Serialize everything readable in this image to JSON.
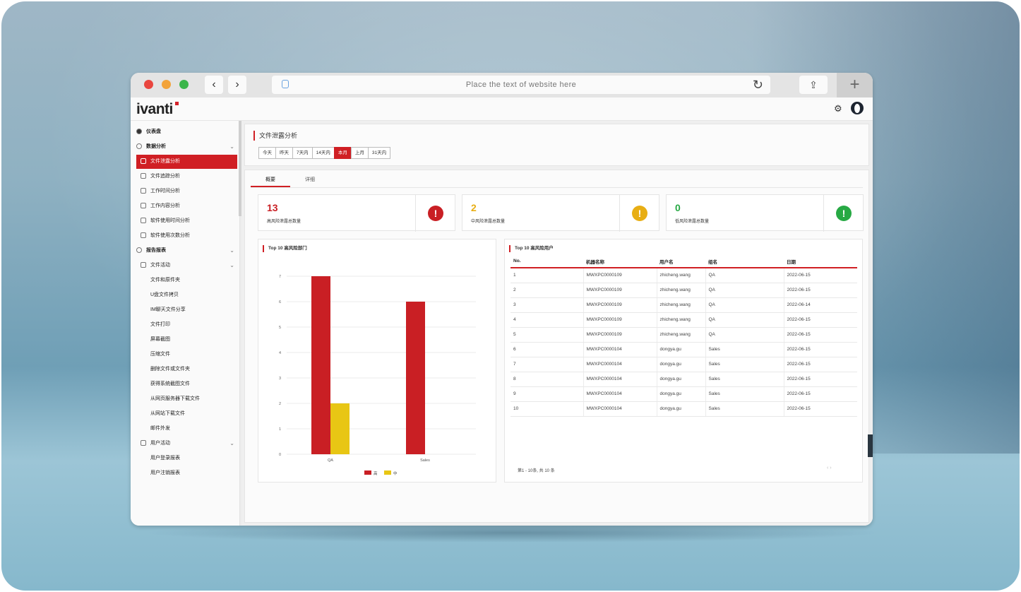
{
  "browser": {
    "url_placeholder": "Place the text of website here",
    "back_icon": "‹",
    "forward_icon": "›",
    "reload_icon": "↻",
    "share_icon": "⇪",
    "new_tab_icon": "+"
  },
  "app": {
    "logo": "ivanti",
    "settings_icon": "⚙"
  },
  "sidebar": {
    "items": [
      {
        "label": "仪表盘",
        "level": 0,
        "icon": "dashboard-icon"
      },
      {
        "label": "数据分析",
        "level": 0,
        "icon": "analytics-icon",
        "expandable": true
      },
      {
        "label": "文件泄露分析",
        "level": 1,
        "icon": "file-icon",
        "active": true
      },
      {
        "label": "文件追踪分析",
        "level": 1,
        "icon": "table-icon"
      },
      {
        "label": "工作时间分析",
        "level": 1,
        "icon": "calendar-icon"
      },
      {
        "label": "工作内容分析",
        "level": 1,
        "icon": "calendar-icon"
      },
      {
        "label": "软件使用时间分析",
        "level": 1,
        "icon": "clock-icon"
      },
      {
        "label": "软件使用次数分析",
        "level": 1,
        "icon": "clock-icon"
      },
      {
        "label": "报告报表",
        "level": 0,
        "icon": "report-icon",
        "expandable": true
      },
      {
        "label": "文件活动",
        "level": 1,
        "icon": "clock-icon",
        "expandable": true
      },
      {
        "label": "文件和原件夹",
        "level": 2
      },
      {
        "label": "U盘文件拷贝",
        "level": 2
      },
      {
        "label": "IM聊天文件分享",
        "level": 2
      },
      {
        "label": "文件打印",
        "level": 2
      },
      {
        "label": "屏幕截图",
        "level": 2
      },
      {
        "label": "压缩文件",
        "level": 2
      },
      {
        "label": "删除文件或文件夹",
        "level": 2
      },
      {
        "label": "获得系统截图文件",
        "level": 2
      },
      {
        "label": "从网页服务器下载文件",
        "level": 2
      },
      {
        "label": "从网站下载文件",
        "level": 2
      },
      {
        "label": "邮件外发",
        "level": 2
      },
      {
        "label": "用户活动",
        "level": 1,
        "icon": "clock-icon",
        "expandable": true
      },
      {
        "label": "用户登录报表",
        "level": 2
      },
      {
        "label": "用户注销报表",
        "level": 2
      }
    ]
  },
  "header": {
    "title": "文件泄露分析",
    "ranges": [
      "今天",
      "昨天",
      "7天内",
      "14天内",
      "本月",
      "上月",
      "31天内"
    ],
    "selected_range": "本月"
  },
  "tabs": [
    {
      "label": "概要",
      "active": true
    },
    {
      "label": "详细",
      "active": false
    }
  ],
  "kpis": [
    {
      "value": "13",
      "label": "高风险泄露总数量",
      "color": "#c91f24",
      "alert_icon": "!"
    },
    {
      "value": "2",
      "label": "中风险泄露总数量",
      "color": "#e8ae14",
      "alert_icon": "!"
    },
    {
      "value": "0",
      "label": "低风险泄露总数量",
      "color": "#27a944",
      "alert_icon": "!"
    }
  ],
  "chart_title": "Top 10 高风险部门",
  "chart_data": {
    "type": "bar",
    "categories": [
      "QA",
      "Sales"
    ],
    "series": [
      {
        "name": "高",
        "color": "#c91f24",
        "values": [
          7,
          6
        ]
      },
      {
        "name": "中",
        "color": "#e8c614",
        "values": [
          2,
          0
        ]
      }
    ],
    "yticks": [
      0,
      1,
      2,
      3,
      4,
      5,
      6,
      7
    ],
    "ylim": [
      0,
      7
    ],
    "legend_position": "bottom"
  },
  "table": {
    "title": "Top 10 高风险用户",
    "columns": [
      "No.",
      "机器名称",
      "用户名",
      "组名",
      "日期"
    ],
    "rows": [
      [
        "1",
        "MWXPC0000109",
        "zhicheng.wang",
        "QA",
        "2022-06-15"
      ],
      [
        "2",
        "MWXPC0000109",
        "zhicheng.wang",
        "QA",
        "2022-06-15"
      ],
      [
        "3",
        "MWXPC0000109",
        "zhicheng.wang",
        "QA",
        "2022-06-14"
      ],
      [
        "4",
        "MWXPC0000109",
        "zhicheng.wang",
        "QA",
        "2022-06-15"
      ],
      [
        "5",
        "MWXPC0000109",
        "zhicheng.wang",
        "QA",
        "2022-06-15"
      ],
      [
        "6",
        "MWXPC0000104",
        "dongya.gu",
        "Sales",
        "2022-06-15"
      ],
      [
        "7",
        "MWXPC0000104",
        "dongya.gu",
        "Sales",
        "2022-06-15"
      ],
      [
        "8",
        "MWXPC0000104",
        "dongya.gu",
        "Sales",
        "2022-06-15"
      ],
      [
        "9",
        "MWXPC0000104",
        "dongya.gu",
        "Sales",
        "2022-06-15"
      ],
      [
        "10",
        "MWXPC0000104",
        "dongya.gu",
        "Sales",
        "2022-06-15"
      ]
    ],
    "pager_text": "第1 - 10条, 共 10 条",
    "pager_arrows": "‹  ›"
  }
}
